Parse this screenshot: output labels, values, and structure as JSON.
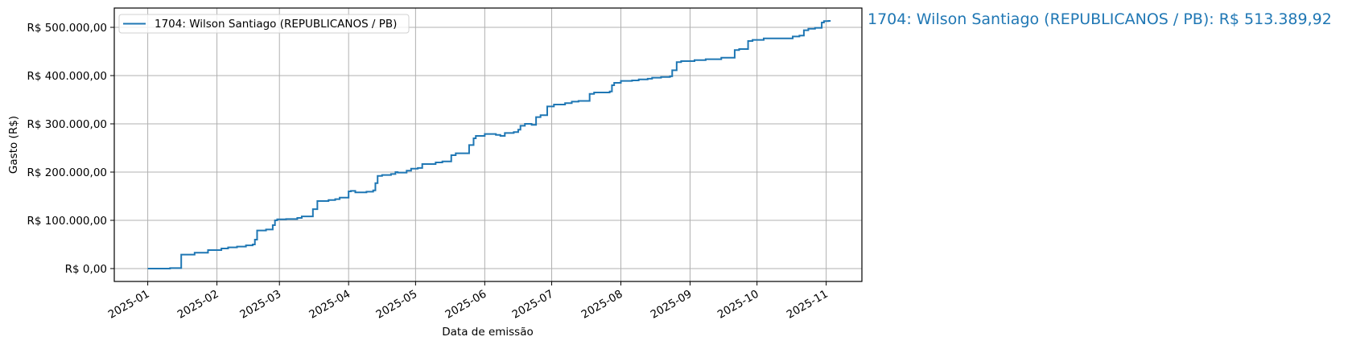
{
  "chart_data": {
    "type": "line",
    "step": true,
    "title": "",
    "xlabel": "Data de emissão",
    "ylabel": "Gasto (R$)",
    "xlim": [
      "2024-12-17",
      "2025-11-17"
    ],
    "ylim": [
      -26700,
      540000
    ],
    "grid": true,
    "legend_position": "top-left",
    "x_ticks": [
      "2025-01-01",
      "2025-02-01",
      "2025-03-01",
      "2025-04-01",
      "2025-05-01",
      "2025-06-01",
      "2025-07-01",
      "2025-08-01",
      "2025-09-01",
      "2025-10-01",
      "2025-11-01"
    ],
    "x_tick_labels": [
      "2025-01",
      "2025-02",
      "2025-03",
      "2025-04",
      "2025-05",
      "2025-06",
      "2025-07",
      "2025-08",
      "2025-09",
      "2025-10",
      "2025-11"
    ],
    "y_ticks": [
      0,
      100000,
      200000,
      300000,
      400000,
      500000
    ],
    "y_tick_labels": [
      "R$ 0,00",
      "R$ 100.000,00",
      "R$ 200.000,00",
      "R$ 300.000,00",
      "R$ 400.000,00",
      "R$ 500.000,00"
    ],
    "series": [
      {
        "name": "1704: Wilson Santiago (REPUBLICANOS / PB)",
        "color": "#1f77b4",
        "x": [
          "2025-01-01",
          "2025-01-11",
          "2025-01-16",
          "2025-01-22",
          "2025-01-28",
          "2025-02-03",
          "2025-02-06",
          "2025-02-10",
          "2025-02-14",
          "2025-02-17",
          "2025-02-18",
          "2025-02-19",
          "2025-02-23",
          "2025-02-26",
          "2025-02-27",
          "2025-02-28",
          "2025-03-04",
          "2025-03-09",
          "2025-03-11",
          "2025-03-16",
          "2025-03-18",
          "2025-03-23",
          "2025-03-26",
          "2025-03-28",
          "2025-04-01",
          "2025-04-02",
          "2025-04-04",
          "2025-04-09",
          "2025-04-12",
          "2025-04-13",
          "2025-04-14",
          "2025-04-16",
          "2025-04-20",
          "2025-04-22",
          "2025-04-23",
          "2025-04-27",
          "2025-04-29",
          "2025-05-02",
          "2025-05-04",
          "2025-05-10",
          "2025-05-13",
          "2025-05-17",
          "2025-05-19",
          "2025-05-25",
          "2025-05-27",
          "2025-05-28",
          "2025-06-01",
          "2025-06-06",
          "2025-06-08",
          "2025-06-10",
          "2025-06-14",
          "2025-06-16",
          "2025-06-17",
          "2025-06-19",
          "2025-06-22",
          "2025-06-24",
          "2025-06-26",
          "2025-06-29",
          "2025-07-02",
          "2025-07-07",
          "2025-07-10",
          "2025-07-13",
          "2025-07-18",
          "2025-07-20",
          "2025-07-27",
          "2025-07-28",
          "2025-07-29",
          "2025-08-01",
          "2025-08-06",
          "2025-08-09",
          "2025-08-13",
          "2025-08-15",
          "2025-08-19",
          "2025-08-23",
          "2025-08-24",
          "2025-08-26",
          "2025-08-28",
          "2025-09-03",
          "2025-09-08",
          "2025-09-15",
          "2025-09-21",
          "2025-09-23",
          "2025-09-27",
          "2025-09-29",
          "2025-10-04",
          "2025-10-17",
          "2025-10-20",
          "2025-10-22",
          "2025-10-24",
          "2025-10-27",
          "2025-10-30",
          "2025-10-31",
          "2025-11-02",
          "2025-11-03"
        ],
        "y": [
          0,
          1100,
          29000,
          32800,
          38300,
          41700,
          44000,
          45500,
          48000,
          50000,
          60000,
          79000,
          81000,
          90000,
          100000,
          102000,
          102700,
          105000,
          108000,
          123000,
          140000,
          142000,
          144000,
          147000,
          160000,
          161000,
          157800,
          159400,
          162000,
          177000,
          192000,
          194000,
          196000,
          200000,
          199000,
          202800,
          207000,
          208500,
          216700,
          220000,
          222000,
          235000,
          239000,
          256000,
          270000,
          275000,
          279000,
          277000,
          275000,
          281000,
          283000,
          288000,
          296000,
          300000,
          298000,
          314000,
          318000,
          336000,
          340000,
          343000,
          346000,
          347500,
          362000,
          365000,
          367000,
          380000,
          385000,
          389000,
          390000,
          392000,
          393500,
          395600,
          397000,
          398600,
          411000,
          428000,
          430000,
          432000,
          434000,
          437000,
          453000,
          455000,
          471600,
          474000,
          477000,
          481000,
          483000,
          494000,
          497000,
          499000,
          510000,
          513000,
          513389.92,
          513389.92
        ]
      }
    ],
    "annotation": "1704: Wilson Santiago (REPUBLICANOS / PB): R$ 513.389,92"
  }
}
